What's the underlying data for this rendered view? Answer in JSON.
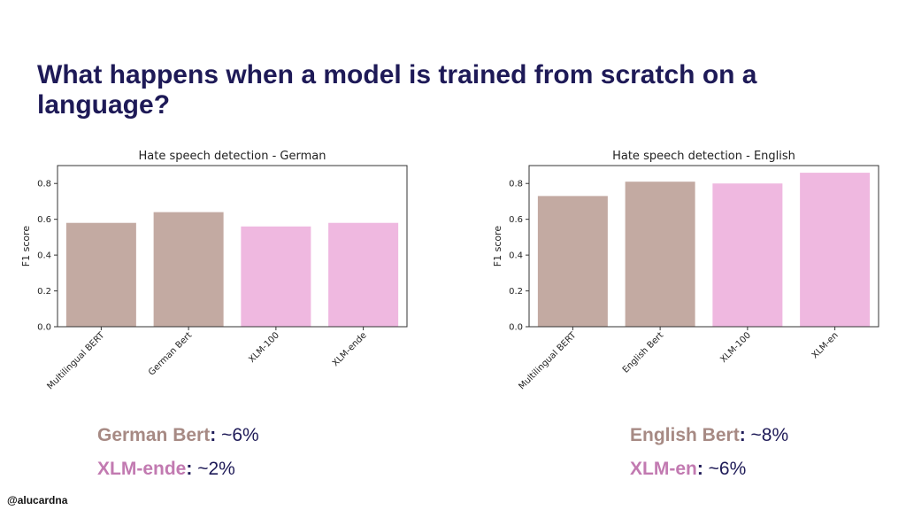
{
  "slide": {
    "title": "What happens when a model is trained from scratch on a language?",
    "credit": "@alucardna"
  },
  "colors": {
    "bert": "#c3aaa2",
    "xlm": "#efb8e0",
    "title": "#1e1a57"
  },
  "notes": [
    {
      "label": "German Bert",
      "value": "~6%",
      "kind": "bert"
    },
    {
      "label": "XLM-ende",
      "value": "~2%",
      "kind": "xlm"
    },
    {
      "label": "English Bert",
      "value": "~8%",
      "kind": "bert"
    },
    {
      "label": "XLM-en",
      "value": "~6%",
      "kind": "xlm"
    }
  ],
  "chart_data": [
    {
      "type": "bar",
      "title": "Hate speech detection - German",
      "ylabel": "F1 score",
      "xlabel": "",
      "categories": [
        "Multilingual BERT",
        "German Bert",
        "XLM-100",
        "XLM-ende"
      ],
      "values": [
        0.58,
        0.64,
        0.56,
        0.58
      ],
      "bar_colors": [
        "#c3aaa2",
        "#c3aaa2",
        "#efb8e0",
        "#efb8e0"
      ],
      "ylim": [
        0,
        0.9
      ],
      "yticks": [
        0.0,
        0.2,
        0.4,
        0.6,
        0.8
      ],
      "ytick_labels": [
        "0.0",
        "0.2",
        "0.4",
        "0.6",
        "0.8"
      ],
      "grid": false
    },
    {
      "type": "bar",
      "title": "Hate speech detection - English",
      "ylabel": "F1 score",
      "xlabel": "",
      "categories": [
        "Multilingual BERT",
        "English Bert",
        "XLM-100",
        "XLM-en"
      ],
      "values": [
        0.73,
        0.81,
        0.8,
        0.86
      ],
      "bar_colors": [
        "#c3aaa2",
        "#c3aaa2",
        "#efb8e0",
        "#efb8e0"
      ],
      "ylim": [
        0,
        0.9
      ],
      "yticks": [
        0.0,
        0.2,
        0.4,
        0.6,
        0.8
      ],
      "ytick_labels": [
        "0.0",
        "0.2",
        "0.4",
        "0.6",
        "0.8"
      ],
      "grid": false
    }
  ]
}
